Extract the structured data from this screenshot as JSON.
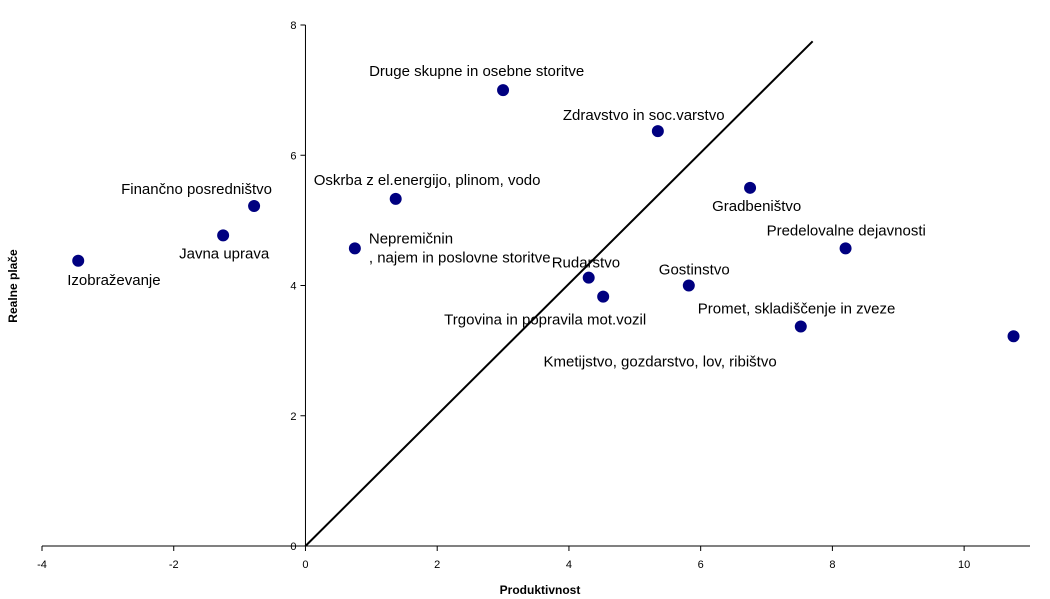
{
  "chart_data": {
    "type": "scatter",
    "title": "",
    "xlabel": "Produktivnost",
    "ylabel": "Realne plače",
    "xlim": [
      -4,
      11
    ],
    "ylim": [
      0,
      8
    ],
    "x_ticks": [
      "-4",
      "-2",
      "0",
      "2",
      "4",
      "6",
      "8",
      "10"
    ],
    "y_ticks": [
      "0",
      "2",
      "4",
      "6",
      "8"
    ],
    "grid": false,
    "marker_color": "#000080",
    "points": [
      {
        "x": 3.0,
        "y": 7.0,
        "label": "Druge skupne in osebne storitve"
      },
      {
        "x": 5.35,
        "y": 6.37,
        "label": "Zdravstvo in soc.varstvo"
      },
      {
        "x": 1.37,
        "y": 5.33,
        "label": "Oskrba z el.energijo, plinom, vodo"
      },
      {
        "x": -0.78,
        "y": 5.22,
        "label": "Finančno posredništvo"
      },
      {
        "x": 6.75,
        "y": 5.5,
        "label": "Gradbeništvo"
      },
      {
        "x": -1.25,
        "y": 4.77,
        "label": "Javna uprava"
      },
      {
        "x": -3.45,
        "y": 4.38,
        "label": "Izobraževanje"
      },
      {
        "x": 0.75,
        "y": 4.57,
        "label": "Nepremičnine, najem in poslovne storitve"
      },
      {
        "x": 8.2,
        "y": 4.57,
        "label": "Predelovalne dejavnosti"
      },
      {
        "x": 4.3,
        "y": 4.12,
        "label": "Rudarstvo"
      },
      {
        "x": 5.82,
        "y": 4.0,
        "label": "Gostinstvo"
      },
      {
        "x": 4.52,
        "y": 3.83,
        "label": "Trgovina in popravila mot.vozil"
      },
      {
        "x": 7.52,
        "y": 3.37,
        "label": "Promet, skladiščenje in zveze"
      },
      {
        "x": 10.75,
        "y": 3.22,
        "label": "Kmetijstvo, gozdarstvo, lov, ribištvo"
      }
    ],
    "reference_line": {
      "from": [
        0,
        0
      ],
      "to": [
        7.7,
        7.75
      ]
    }
  }
}
